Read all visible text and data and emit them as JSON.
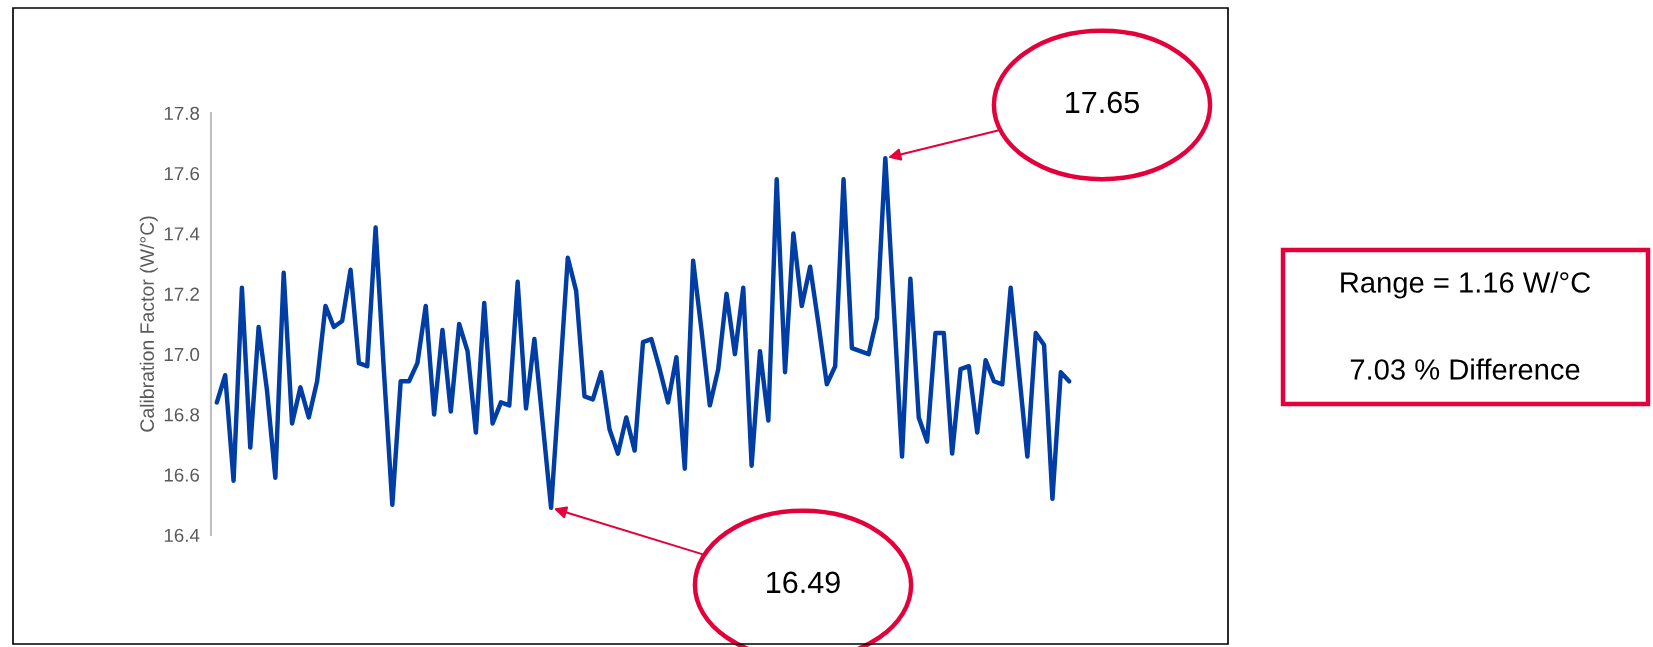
{
  "chart_data": {
    "type": "line",
    "ylabel": "Calibration Factor (W/°C)",
    "categories": [
      null,
      null,
      null,
      null,
      null,
      null,
      null,
      null,
      null,
      null,
      null,
      null,
      null,
      null,
      null,
      null,
      null,
      null,
      null,
      null,
      null,
      null,
      null,
      null,
      null,
      null,
      null,
      null,
      null,
      null,
      null,
      null,
      null,
      null,
      null,
      null,
      null,
      null,
      null,
      null,
      null,
      null,
      null,
      null,
      null,
      null,
      null,
      null,
      null,
      null,
      null,
      null,
      null,
      null,
      null,
      null,
      null,
      null,
      null,
      null,
      null,
      null,
      null,
      null,
      null,
      null,
      null,
      null,
      null,
      null,
      null,
      null,
      null,
      null,
      null,
      null,
      null,
      null,
      null,
      null,
      null,
      null,
      null,
      null,
      null,
      null,
      null,
      null,
      null,
      null,
      null,
      null,
      null,
      null,
      null,
      null,
      null,
      null,
      null,
      null,
      null,
      null,
      null
    ],
    "series": [
      {
        "color": "#003da5",
        "values": [
          16.84,
          16.93,
          16.58,
          17.22,
          16.69,
          17.09,
          16.88,
          16.59,
          17.27,
          16.77,
          16.89,
          16.79,
          16.91,
          17.16,
          17.09,
          17.11,
          17.28,
          16.97,
          16.96,
          17.42,
          16.94,
          16.5,
          16.91,
          16.91,
          16.97,
          17.16,
          16.8,
          17.08,
          16.81,
          17.1,
          17.01,
          16.74,
          17.17,
          16.77,
          16.84,
          16.83,
          17.24,
          16.82,
          17.05,
          16.77,
          16.49,
          16.9,
          17.32,
          17.21,
          16.86,
          16.85,
          16.94,
          16.75,
          16.67,
          16.79,
          16.68,
          17.04,
          17.05,
          16.95,
          16.84,
          16.99,
          16.62,
          17.31,
          17.08,
          16.83,
          16.95,
          17.2,
          17.0,
          17.22,
          16.63,
          17.01,
          16.78,
          17.58,
          16.94,
          17.4,
          17.16,
          17.29,
          17.1,
          16.9,
          16.96,
          17.58,
          17.02,
          17.01,
          17.0,
          17.12,
          17.65,
          17.16,
          16.66,
          17.25,
          16.79,
          16.71,
          17.07,
          17.07,
          16.67,
          16.95,
          16.96,
          16.74,
          16.98,
          16.91,
          16.9,
          17.22,
          16.94,
          16.66,
          17.07,
          17.03,
          16.52,
          16.94,
          16.91
        ]
      }
    ],
    "ylim": [
      16.4,
      17.8
    ],
    "yticks": [
      {
        "value": 16.4,
        "label": "16.4"
      },
      {
        "value": 16.6,
        "label": "16.6"
      },
      {
        "value": 16.8,
        "label": "16.8"
      },
      {
        "value": 17.0,
        "label": "17.0"
      },
      {
        "value": 17.2,
        "label": "17.2"
      },
      {
        "value": 17.4,
        "label": "17.4"
      },
      {
        "value": 17.6,
        "label": "17.6"
      },
      {
        "value": 17.8,
        "label": "17.8"
      }
    ],
    "grid": false,
    "legend": false,
    "marker": "none",
    "line_style": "solid",
    "tick_labels": "y",
    "annotations": [
      "17.65",
      "16.49",
      "Range = 1.16 W/°C",
      "7.03 % Difference"
    ]
  }
}
